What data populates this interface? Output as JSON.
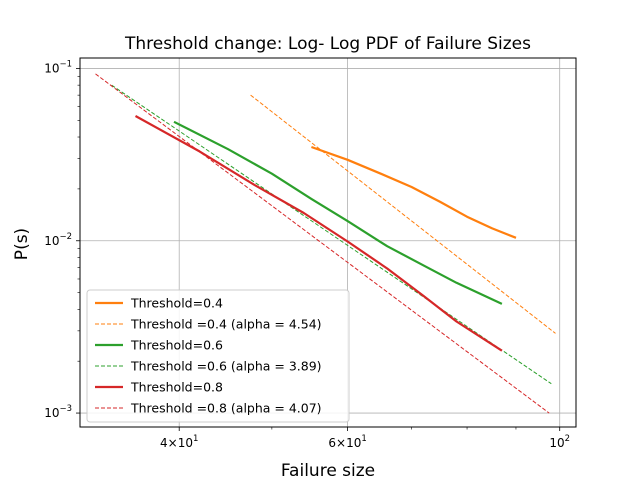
{
  "chart_data": {
    "type": "line",
    "title": "Threshold change: Log- Log PDF of Failure Sizes",
    "xlabel": "Failure size",
    "ylabel": "P(s)",
    "xscale": "log",
    "yscale": "log",
    "xlim": [
      31.5,
      104
    ],
    "ylim": [
      0.00083,
      0.115
    ],
    "grid": true,
    "legend_position": "lower-left",
    "x_ticks": [
      {
        "value": 40,
        "base": "4",
        "mult": "×10",
        "exp": "1"
      },
      {
        "value": 60,
        "base": "6",
        "mult": "×10",
        "exp": "1"
      },
      {
        "value": 100,
        "base": "10",
        "mult": "",
        "exp": "2"
      }
    ],
    "y_ticks": [
      {
        "value": 0.1,
        "base": "10",
        "exp": "−1"
      },
      {
        "value": 0.01,
        "base": "10",
        "exp": "−2"
      },
      {
        "value": 0.001,
        "base": "10",
        "exp": "−3"
      }
    ],
    "series": [
      {
        "name": "Threshold=0.4",
        "color": "#ff7f0e",
        "style": "solid",
        "x": [
          55,
          60,
          65,
          70,
          75,
          80,
          85,
          90
        ],
        "y": [
          0.035,
          0.0295,
          0.0245,
          0.0205,
          0.0168,
          0.0138,
          0.0118,
          0.0104
        ]
      },
      {
        "name": "Threshold =0.4 (alpha = 4.54)",
        "color": "#ff7f0e",
        "style": "dashed",
        "x": [
          47.5,
          99
        ],
        "y": [
          0.07,
          0.0029
        ]
      },
      {
        "name": "Threshold=0.6",
        "color": "#2ca02c",
        "style": "solid",
        "x": [
          39.5,
          45,
          50,
          55,
          60,
          66,
          72,
          78,
          87
        ],
        "y": [
          0.049,
          0.034,
          0.0245,
          0.0175,
          0.013,
          0.0093,
          0.0072,
          0.0057,
          0.0043
        ]
      },
      {
        "name": "Threshold =0.6 (alpha = 3.89)",
        "color": "#2ca02c",
        "style": "dashed",
        "x": [
          34,
          98
        ],
        "y": [
          0.08,
          0.00148
        ]
      },
      {
        "name": "Threshold=0.8",
        "color": "#d62728",
        "style": "solid",
        "x": [
          36,
          42,
          48,
          54,
          60,
          66,
          72,
          78,
          87
        ],
        "y": [
          0.053,
          0.033,
          0.021,
          0.0145,
          0.0099,
          0.0069,
          0.0048,
          0.0034,
          0.0023
        ]
      },
      {
        "name": "Threshold =0.8 (alpha = 4.07)",
        "color": "#d62728",
        "style": "dashed",
        "x": [
          32.7,
          97.5
        ],
        "y": [
          0.093,
          0.001
        ]
      }
    ]
  }
}
